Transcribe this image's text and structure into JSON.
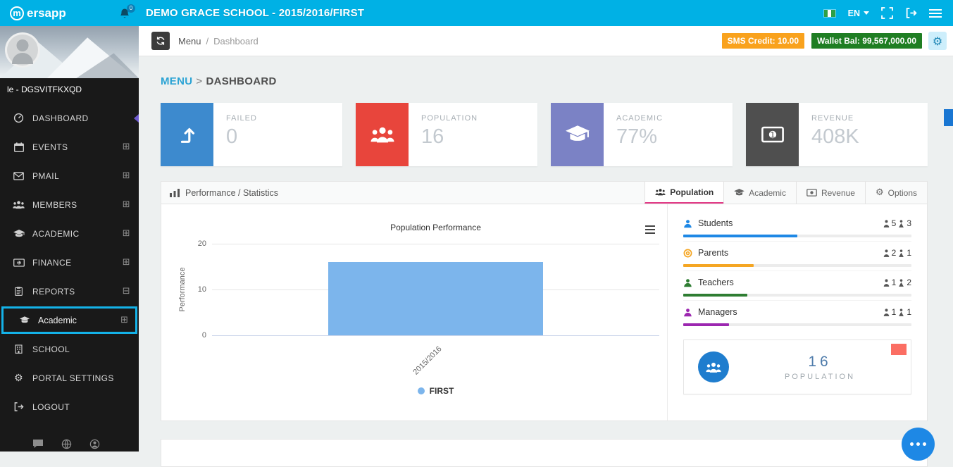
{
  "topbar": {
    "logo_m": "m",
    "logo_rest": "ersapp",
    "notification_badge": "0",
    "title": "DEMO GRACE SCHOOL - 2015/2016/FIRST",
    "language_label": "EN",
    "accent_color": "#00b1e5"
  },
  "subheader": {
    "breadcrumb_root": "Menu",
    "breadcrumb_sep": "/",
    "breadcrumb_current": "Dashboard",
    "sms_badge": "SMS Credit: 10.00",
    "wallet_badge": "Wallet Bal: 99,567,000.00",
    "sms_color": "#f9a21d",
    "wallet_color": "#1f7e23"
  },
  "page_heading": {
    "root": "MENU",
    "sep": ">",
    "current": "DASHBOARD"
  },
  "sidebar": {
    "profile_name": "le - DGSVITFKXQD",
    "items": [
      {
        "label": "DASHBOARD",
        "expander": ""
      },
      {
        "label": "EVENTS",
        "expander": "⊞"
      },
      {
        "label": "PMAIL",
        "expander": "⊞"
      },
      {
        "label": "MEMBERS",
        "expander": "⊞"
      },
      {
        "label": "ACADEMIC",
        "expander": "⊞"
      },
      {
        "label": "FINANCE",
        "expander": "⊞"
      },
      {
        "label": "REPORTS",
        "expander": "⊟"
      },
      {
        "label": "Academic",
        "expander": "⊞"
      },
      {
        "label": "SCHOOL",
        "expander": ""
      },
      {
        "label": "PORTAL SETTINGS",
        "expander": ""
      },
      {
        "label": "LOGOUT",
        "expander": ""
      }
    ],
    "highlight_color": "#14b2e8"
  },
  "stat_cards": [
    {
      "label": "FAILED",
      "value": "0",
      "color": "#3d8ace"
    },
    {
      "label": "POPULATION",
      "value": "16",
      "color": "#e8453c"
    },
    {
      "label": "ACADEMIC",
      "value": "77%",
      "color": "#7b82c5"
    },
    {
      "label": "REVENUE",
      "value": "408K",
      "color": "#4f4f4f"
    }
  ],
  "panel": {
    "title": "Performance / Statistics",
    "tabs": [
      {
        "label": "Population"
      },
      {
        "label": "Academic"
      },
      {
        "label": "Revenue"
      },
      {
        "label": "Options"
      }
    ],
    "active_tab": "Population",
    "active_tab_underline": "#e23a86"
  },
  "chart_data": {
    "type": "bar",
    "title": "Population Performance",
    "xlabel": "",
    "ylabel": "Performance",
    "categories": [
      "2015/2016"
    ],
    "series": [
      {
        "name": "FIRST",
        "values": [
          16
        ],
        "color": "#7cb5ec"
      }
    ],
    "ylim": [
      0,
      20
    ],
    "yticks": [
      20,
      10,
      0
    ],
    "grid": true,
    "legend_position": "bottom"
  },
  "population_breakdown": [
    {
      "name": "Students",
      "male": 5,
      "female": 3,
      "color": "#1e88e5",
      "bar_pct": 50
    },
    {
      "name": "Parents",
      "male": 2,
      "female": 1,
      "color": "#f5a623",
      "bar_pct": 31
    },
    {
      "name": "Teachers",
      "male": 1,
      "female": 2,
      "color": "#2e7d32",
      "bar_pct": 28
    },
    {
      "name": "Managers",
      "male": 1,
      "female": 1,
      "color": "#9c27b0",
      "bar_pct": 20
    }
  ],
  "population_card": {
    "value": "16",
    "label": "POPULATION",
    "circle_color": "#1f7dce",
    "flag_color": "#fb6e63"
  }
}
